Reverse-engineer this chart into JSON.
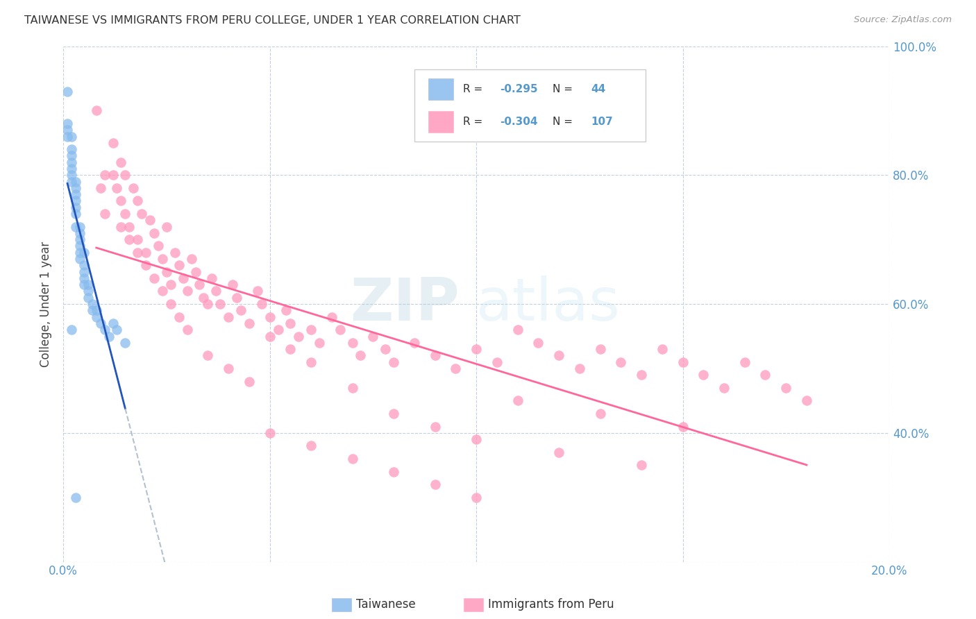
{
  "title": "TAIWANESE VS IMMIGRANTS FROM PERU COLLEGE, UNDER 1 YEAR CORRELATION CHART",
  "source": "Source: ZipAtlas.com",
  "ylabel": "College, Under 1 year",
  "x_min": 0.0,
  "x_max": 0.2,
  "y_min": 0.2,
  "y_max": 1.0,
  "taiwanese_color": "#88BBEE",
  "peru_color": "#FF99BB",
  "tw_line_color": "#2255BB",
  "pe_line_color": "#FF6699",
  "dash_color": "#AABBCC",
  "taiwanese_R": -0.295,
  "taiwanese_N": 44,
  "peru_R": -0.304,
  "peru_N": 107,
  "legend_label_1": "Taiwanese",
  "legend_label_2": "Immigrants from Peru",
  "watermark_zip": "ZIP",
  "watermark_atlas": "atlas",
  "tw_x": [
    0.001,
    0.001,
    0.001,
    0.001,
    0.002,
    0.002,
    0.002,
    0.002,
    0.002,
    0.002,
    0.002,
    0.003,
    0.003,
    0.003,
    0.003,
    0.003,
    0.003,
    0.003,
    0.004,
    0.004,
    0.004,
    0.004,
    0.004,
    0.004,
    0.005,
    0.005,
    0.005,
    0.005,
    0.005,
    0.006,
    0.006,
    0.006,
    0.007,
    0.007,
    0.008,
    0.008,
    0.009,
    0.01,
    0.011,
    0.012,
    0.013,
    0.015,
    0.002,
    0.003
  ],
  "tw_y": [
    0.93,
    0.88,
    0.87,
    0.86,
    0.86,
    0.84,
    0.83,
    0.82,
    0.81,
    0.8,
    0.79,
    0.79,
    0.78,
    0.77,
    0.76,
    0.75,
    0.74,
    0.72,
    0.72,
    0.71,
    0.7,
    0.69,
    0.68,
    0.67,
    0.68,
    0.66,
    0.65,
    0.64,
    0.63,
    0.63,
    0.62,
    0.61,
    0.6,
    0.59,
    0.59,
    0.58,
    0.57,
    0.56,
    0.55,
    0.57,
    0.56,
    0.54,
    0.56,
    0.3
  ],
  "pe_x": [
    0.01,
    0.012,
    0.013,
    0.014,
    0.014,
    0.015,
    0.015,
    0.016,
    0.017,
    0.018,
    0.018,
    0.019,
    0.02,
    0.021,
    0.022,
    0.023,
    0.024,
    0.025,
    0.025,
    0.026,
    0.027,
    0.028,
    0.029,
    0.03,
    0.031,
    0.032,
    0.033,
    0.034,
    0.035,
    0.036,
    0.037,
    0.038,
    0.04,
    0.041,
    0.042,
    0.043,
    0.045,
    0.047,
    0.048,
    0.05,
    0.052,
    0.054,
    0.055,
    0.057,
    0.06,
    0.062,
    0.065,
    0.067,
    0.07,
    0.072,
    0.075,
    0.078,
    0.08,
    0.085,
    0.09,
    0.095,
    0.1,
    0.105,
    0.11,
    0.115,
    0.12,
    0.125,
    0.13,
    0.135,
    0.14,
    0.145,
    0.15,
    0.155,
    0.16,
    0.165,
    0.17,
    0.175,
    0.18,
    0.008,
    0.009,
    0.01,
    0.012,
    0.014,
    0.016,
    0.018,
    0.02,
    0.022,
    0.024,
    0.026,
    0.028,
    0.03,
    0.035,
    0.04,
    0.045,
    0.05,
    0.055,
    0.06,
    0.07,
    0.08,
    0.09,
    0.1,
    0.12,
    0.14,
    0.05,
    0.06,
    0.07,
    0.08,
    0.09,
    0.1,
    0.11,
    0.13,
    0.15
  ],
  "pe_y": [
    0.8,
    0.85,
    0.78,
    0.76,
    0.82,
    0.74,
    0.8,
    0.72,
    0.78,
    0.7,
    0.76,
    0.74,
    0.68,
    0.73,
    0.71,
    0.69,
    0.67,
    0.65,
    0.72,
    0.63,
    0.68,
    0.66,
    0.64,
    0.62,
    0.67,
    0.65,
    0.63,
    0.61,
    0.6,
    0.64,
    0.62,
    0.6,
    0.58,
    0.63,
    0.61,
    0.59,
    0.57,
    0.62,
    0.6,
    0.58,
    0.56,
    0.59,
    0.57,
    0.55,
    0.56,
    0.54,
    0.58,
    0.56,
    0.54,
    0.52,
    0.55,
    0.53,
    0.51,
    0.54,
    0.52,
    0.5,
    0.53,
    0.51,
    0.56,
    0.54,
    0.52,
    0.5,
    0.53,
    0.51,
    0.49,
    0.53,
    0.51,
    0.49,
    0.47,
    0.51,
    0.49,
    0.47,
    0.45,
    0.9,
    0.78,
    0.74,
    0.8,
    0.72,
    0.7,
    0.68,
    0.66,
    0.64,
    0.62,
    0.6,
    0.58,
    0.56,
    0.52,
    0.5,
    0.48,
    0.55,
    0.53,
    0.51,
    0.47,
    0.43,
    0.41,
    0.39,
    0.37,
    0.35,
    0.4,
    0.38,
    0.36,
    0.34,
    0.32,
    0.3,
    0.45,
    0.43,
    0.41
  ]
}
